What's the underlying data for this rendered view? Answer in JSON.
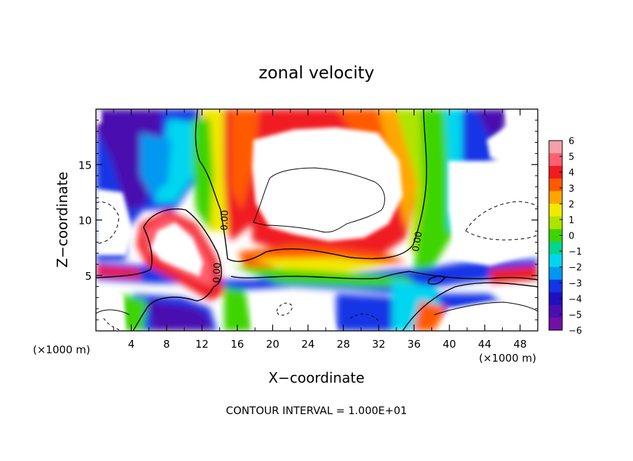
{
  "chart_data": {
    "type": "heatmap",
    "title": "zonal velocity",
    "xlabel": "X−coordinate",
    "ylabel": "Z−coordinate",
    "x_unit_left": "(×1000 m)",
    "x_unit_right": "(×1000 m)",
    "xlim": [
      0,
      50
    ],
    "ylim": [
      0,
      20
    ],
    "xticks": [
      4,
      8,
      12,
      16,
      20,
      24,
      28,
      32,
      36,
      40,
      44,
      48
    ],
    "yticks": [
      5,
      10,
      15
    ],
    "colorbar": {
      "min": -6,
      "max": 6,
      "labels": [
        "6",
        "5",
        "4",
        "3",
        "2",
        "1",
        "0",
        "−1",
        "−2",
        "−3",
        "−4",
        "−5",
        "−6"
      ],
      "colors": [
        "#f5a0a8",
        "#ff6070",
        "#f01c20",
        "#ff5a00",
        "#ffa600",
        "#f2e800",
        "#aee400",
        "#3ed400",
        "#00d58c",
        "#00d6f0",
        "#0098f0",
        "#1434e6",
        "#2010c0",
        "#4a0eb0",
        "#7010a6"
      ]
    },
    "contour_labels": [
      "0.00",
      "0.00",
      "0.00"
    ],
    "footnote": "CONTOUR INTERVAL = 1.000E+01"
  }
}
